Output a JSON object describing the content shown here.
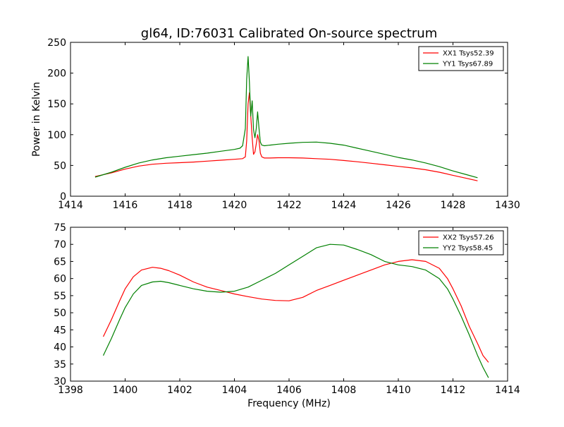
{
  "chart_data": [
    {
      "type": "line",
      "title": "gl64, ID:76031 Calibrated On-source spectrum",
      "xlabel": "",
      "ylabel": "Power in Kelvin",
      "xlim": [
        1414,
        1430
      ],
      "ylim": [
        0,
        250
      ],
      "xticks": [
        "1414",
        "1416",
        "1418",
        "1420",
        "1422",
        "1424",
        "1426",
        "1428",
        "1430"
      ],
      "yticks": [
        "0",
        "50",
        "100",
        "150",
        "200",
        "250"
      ],
      "grid": false,
      "legend_position": "top-right",
      "series": [
        {
          "name": "XX1 Tsys52.39",
          "color": "#ff0000",
          "x": [
            1414.9,
            1415.5,
            1416.0,
            1416.5,
            1417.0,
            1417.5,
            1418.0,
            1418.5,
            1419.0,
            1419.5,
            1420.0,
            1420.3,
            1420.4,
            1420.45,
            1420.5,
            1420.55,
            1420.6,
            1420.65,
            1420.7,
            1420.75,
            1420.8,
            1420.85,
            1420.9,
            1420.95,
            1421.0,
            1421.1,
            1421.3,
            1421.6,
            1422.0,
            1422.5,
            1423.0,
            1423.5,
            1424.0,
            1424.5,
            1425.0,
            1425.5,
            1426.0,
            1426.5,
            1427.0,
            1427.5,
            1428.0,
            1428.5,
            1428.9
          ],
          "y": [
            32,
            38,
            44,
            49,
            52,
            53.5,
            54.5,
            55.5,
            57,
            58.5,
            60,
            61,
            64,
            90,
            150,
            168,
            130,
            95,
            68,
            72,
            85,
            100,
            90,
            70,
            64,
            62,
            62,
            62.5,
            62.5,
            62,
            61,
            60,
            58,
            56,
            53.5,
            51,
            48.5,
            46,
            43,
            39,
            34,
            29,
            25
          ]
        },
        {
          "name": "YY1 Tsys67.89",
          "color": "#008000",
          "x": [
            1414.9,
            1415.5,
            1416.0,
            1416.5,
            1417.0,
            1417.5,
            1418.0,
            1418.5,
            1419.0,
            1419.5,
            1420.0,
            1420.2,
            1420.3,
            1420.4,
            1420.45,
            1420.5,
            1420.55,
            1420.6,
            1420.65,
            1420.7,
            1420.75,
            1420.8,
            1420.85,
            1420.9,
            1420.95,
            1421.0,
            1421.1,
            1421.3,
            1421.6,
            1422.0,
            1422.5,
            1423.0,
            1423.5,
            1424.0,
            1424.5,
            1425.0,
            1425.5,
            1426.0,
            1426.5,
            1427.0,
            1427.5,
            1428.0,
            1428.5,
            1428.9
          ],
          "y": [
            31,
            39,
            47,
            54,
            59,
            62.5,
            65,
            67.5,
            70,
            73,
            76,
            78,
            82,
            110,
            190,
            227,
            185,
            130,
            155,
            108,
            95,
            110,
            137,
            110,
            88,
            83,
            82,
            83,
            84.5,
            86,
            87.5,
            88,
            86,
            83,
            78,
            73,
            68,
            63,
            59,
            54,
            48,
            41,
            35,
            30
          ]
        }
      ]
    },
    {
      "type": "line",
      "title": "",
      "xlabel": "Frequency (MHz)",
      "ylabel": "",
      "xlim": [
        1398,
        1414
      ],
      "ylim": [
        30,
        75
      ],
      "xticks": [
        "1398",
        "1400",
        "1402",
        "1404",
        "1406",
        "1408",
        "1410",
        "1412",
        "1414"
      ],
      "yticks": [
        "30",
        "35",
        "40",
        "45",
        "50",
        "55",
        "60",
        "65",
        "70",
        "75"
      ],
      "grid": false,
      "legend_position": "top-right",
      "series": [
        {
          "name": "XX2 Tsys57.26",
          "color": "#ff0000",
          "x": [
            1399.2,
            1399.5,
            1399.8,
            1400.0,
            1400.3,
            1400.6,
            1401.0,
            1401.3,
            1401.6,
            1402.0,
            1402.5,
            1403.0,
            1403.5,
            1404.0,
            1404.5,
            1405.0,
            1405.5,
            1406.0,
            1406.5,
            1407.0,
            1407.5,
            1408.0,
            1408.5,
            1409.0,
            1409.5,
            1410.0,
            1410.5,
            1411.0,
            1411.5,
            1411.8,
            1412.0,
            1412.3,
            1412.6,
            1412.9,
            1413.1,
            1413.3
          ],
          "y": [
            43,
            48,
            53.5,
            57,
            60.5,
            62.5,
            63.3,
            63,
            62.3,
            61,
            59,
            57.5,
            56.5,
            55.5,
            54.7,
            54,
            53.6,
            53.5,
            54.5,
            56.5,
            58,
            59.5,
            61,
            62.5,
            64,
            65,
            65.5,
            65,
            63,
            60,
            57,
            52,
            46,
            41,
            37.5,
            35.5
          ]
        },
        {
          "name": "YY2 Tsys58.45",
          "color": "#008000",
          "x": [
            1399.2,
            1399.5,
            1399.8,
            1400.0,
            1400.3,
            1400.6,
            1401.0,
            1401.3,
            1401.6,
            1402.0,
            1402.5,
            1403.0,
            1403.5,
            1404.0,
            1404.5,
            1405.0,
            1405.5,
            1406.0,
            1406.5,
            1407.0,
            1407.5,
            1408.0,
            1408.5,
            1409.0,
            1409.5,
            1410.0,
            1410.5,
            1411.0,
            1411.5,
            1411.8,
            1412.0,
            1412.3,
            1412.6,
            1412.9,
            1413.1,
            1413.3
          ],
          "y": [
            37.5,
            42.5,
            48,
            51.5,
            55.5,
            58,
            59,
            59.2,
            58.8,
            58,
            57,
            56.3,
            56,
            56.3,
            57.5,
            59.5,
            61.5,
            64,
            66.5,
            69,
            70,
            69.8,
            68.5,
            67,
            65,
            64,
            63.5,
            62.5,
            60,
            57,
            54,
            49,
            43.5,
            37.5,
            34,
            31
          ]
        }
      ]
    }
  ]
}
